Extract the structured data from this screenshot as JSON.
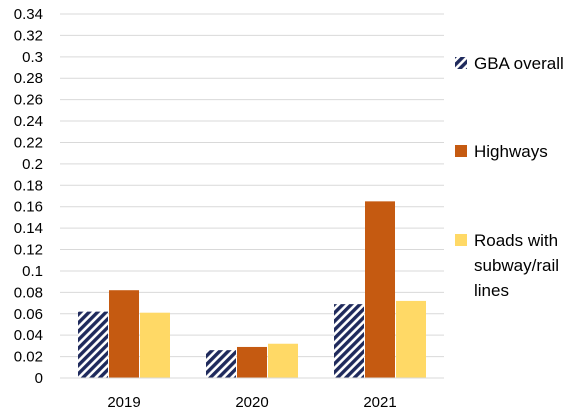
{
  "chart_data": {
    "type": "bar",
    "categories": [
      "2019",
      "2020",
      "2021"
    ],
    "series": [
      {
        "name": "GBA overall",
        "values": [
          0.062,
          0.026,
          0.069
        ],
        "color": "#1f2a5c",
        "pattern": "diagonal-stripes"
      },
      {
        "name": "Highways",
        "values": [
          0.082,
          0.029,
          0.165
        ],
        "color": "#c55a11"
      },
      {
        "name": "Roads with subway/rail lines",
        "values": [
          0.061,
          0.032,
          0.072
        ],
        "color": "#ffd966"
      }
    ],
    "ylim": [
      0,
      0.34
    ],
    "yticks": [
      "0",
      "0.02",
      "0.04",
      "0.06",
      "0.08",
      "0.1",
      "0.12",
      "0.14",
      "0.16",
      "0.18",
      "0.2",
      "0.22",
      "0.24",
      "0.26",
      "0.28",
      "0.3",
      "0.32",
      "0.34"
    ],
    "grid": true,
    "legend": {
      "position": "right",
      "entries": [
        {
          "series": "GBA overall",
          "lines": [
            "GBA overall"
          ]
        },
        {
          "series": "Highways",
          "lines": [
            "Highways"
          ]
        },
        {
          "series": "Roads with subway/rail lines",
          "lines": [
            "Roads with",
            "subway/rail",
            "lines"
          ]
        }
      ]
    }
  }
}
